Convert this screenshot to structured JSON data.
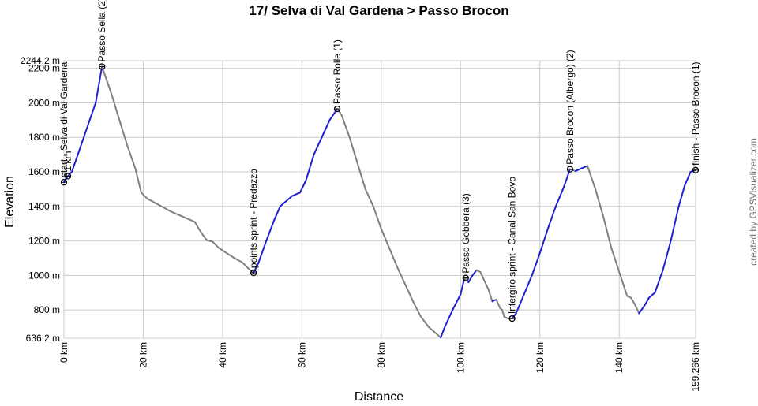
{
  "chart_data": {
    "type": "line",
    "title": "17/ Selva di Val Gardena > Passo Brocon",
    "xlabel": "Distance",
    "ylabel": "Elevation",
    "credit": "created by GPSVisualizer.com",
    "xlim": [
      0,
      159.266
    ],
    "ylim": [
      636.2,
      2244.2
    ],
    "x_ticks": [
      {
        "value": 0,
        "label": "0 km"
      },
      {
        "value": 20,
        "label": "20 km"
      },
      {
        "value": 40,
        "label": "40 km"
      },
      {
        "value": 60,
        "label": "60 km"
      },
      {
        "value": 80,
        "label": "80 km"
      },
      {
        "value": 100,
        "label": "100 km"
      },
      {
        "value": 120,
        "label": "120 km"
      },
      {
        "value": 140,
        "label": "140 km"
      },
      {
        "value": 159.266,
        "label": "159.266 km"
      }
    ],
    "y_ticks": [
      {
        "value": 636.2,
        "label": "636.2 m"
      },
      {
        "value": 800,
        "label": "800 m"
      },
      {
        "value": 1000,
        "label": "1000 m"
      },
      {
        "value": 1200,
        "label": "1200 m"
      },
      {
        "value": 1400,
        "label": "1400 m"
      },
      {
        "value": 1600,
        "label": "1600 m"
      },
      {
        "value": 1800,
        "label": "1800 m"
      },
      {
        "value": 2000,
        "label": "2000 m"
      },
      {
        "value": 2200,
        "label": "2200 m"
      },
      {
        "value": 2244.2,
        "label": "2244.2 m"
      }
    ],
    "grid": true,
    "x_km": [
      0,
      0.8,
      2,
      3.5,
      5,
      6.5,
      8,
      9.6,
      12,
      14,
      16,
      18,
      19.5,
      21,
      23,
      25,
      27,
      29,
      31,
      33,
      34,
      35,
      36,
      37.5,
      39,
      41,
      43,
      45,
      46.5,
      47.8,
      49,
      51,
      53,
      54.5,
      56,
      57.5,
      58.5,
      59.5,
      61,
      63,
      65,
      67,
      68.9,
      70,
      72,
      74,
      76,
      78,
      80,
      82,
      84,
      86,
      88,
      90,
      92,
      94,
      95,
      96,
      98,
      100,
      101,
      102,
      103,
      104,
      105,
      106,
      107,
      108,
      109,
      110,
      110.5,
      111,
      112,
      113,
      114,
      116,
      118,
      120,
      122,
      124,
      126,
      127.6,
      129,
      130.5,
      132,
      134,
      136,
      138,
      140,
      142,
      143,
      144,
      145,
      146.5,
      147.5,
      149,
      151,
      153,
      155,
      156.5,
      158,
      159.266
    ],
    "elevation_m": [
      1540,
      1570,
      1600,
      1700,
      1800,
      1900,
      2000,
      2210,
      2050,
      1900,
      1750,
      1620,
      1480,
      1445,
      1420,
      1395,
      1370,
      1350,
      1330,
      1310,
      1270,
      1235,
      1205,
      1195,
      1160,
      1130,
      1100,
      1075,
      1040,
      1015,
      1070,
      1200,
      1320,
      1400,
      1430,
      1460,
      1470,
      1480,
      1550,
      1700,
      1800,
      1900,
      1965,
      1930,
      1800,
      1650,
      1500,
      1400,
      1270,
      1160,
      1050,
      950,
      850,
      760,
      700,
      660,
      640,
      700,
      800,
      890,
      985,
      960,
      1000,
      1030,
      1020,
      970,
      920,
      850,
      860,
      810,
      800,
      760,
      750,
      750,
      780,
      890,
      1000,
      1130,
      1270,
      1400,
      1510,
      1615,
      1605,
      1620,
      1635,
      1500,
      1340,
      1160,
      1020,
      880,
      870,
      830,
      780,
      830,
      870,
      900,
      1030,
      1200,
      1400,
      1520,
      1600,
      1610
    ],
    "waypoints": [
      {
        "km": 0.0,
        "elev": 1540,
        "label": "start - Selva di Val Gardena"
      },
      {
        "km": 1.0,
        "elev": 1575,
        "label": "1 km"
      },
      {
        "km": 9.6,
        "elev": 2210,
        "label": "Passo Sella (2)"
      },
      {
        "km": 47.8,
        "elev": 1015,
        "label": "points sprint - Predazzo"
      },
      {
        "km": 68.9,
        "elev": 1965,
        "label": "Passo Rolle (1)"
      },
      {
        "km": 101.3,
        "elev": 985,
        "label": "Passo Gobbera (3)"
      },
      {
        "km": 113.0,
        "elev": 750,
        "label": "Intergiro sprint - Canal San Bovo"
      },
      {
        "km": 127.6,
        "elev": 1615,
        "label": "Passo Brocon (Albergo) (2)"
      },
      {
        "km": 159.266,
        "elev": 1610,
        "label": "finish - Passo Brocon (1)"
      }
    ],
    "colors": {
      "profile": "#808080",
      "climb": "#1f1fd6",
      "accent": "#2bb32b"
    }
  }
}
